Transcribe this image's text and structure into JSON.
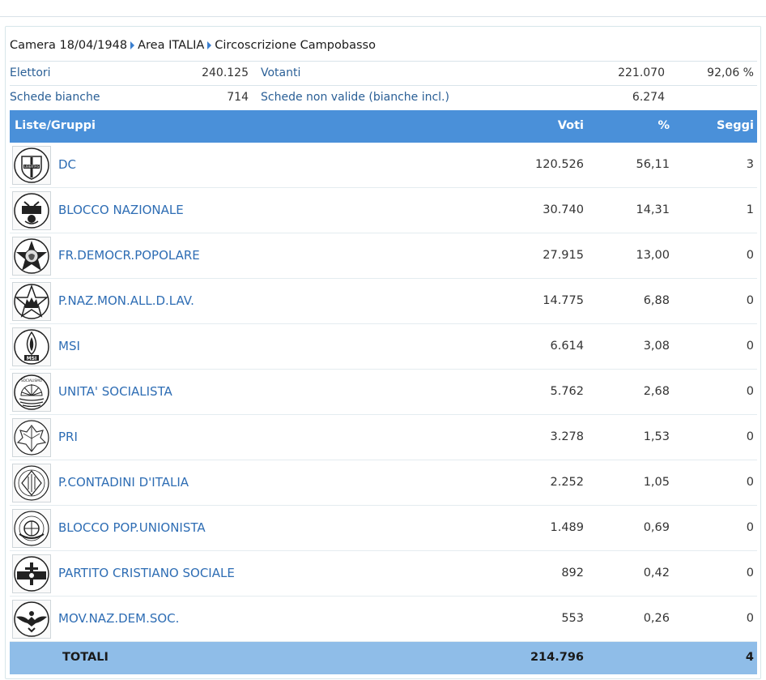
{
  "breadcrumb": [
    "Camera 18/04/1948",
    "Area ITALIA",
    "Circoscrizione Campobasso"
  ],
  "summary": {
    "elettori_label": "Elettori",
    "elettori_value": "240.125",
    "votanti_label": "Votanti",
    "votanti_value": "221.070",
    "votanti_pct": "92,06 %",
    "bianche_label": "Schede bianche",
    "bianche_value": "714",
    "nonvalide_label": "Schede non valide (bianche incl.)",
    "nonvalide_value": "6.274"
  },
  "table": {
    "headers": {
      "lists": "Liste/Gruppi",
      "votes": "Voti",
      "pct": "%",
      "seats": "Seggi"
    },
    "rows": [
      {
        "party": "DC",
        "votes": "120.526",
        "pct": "56,11",
        "seats": "3",
        "icon": "dc-shield-icon"
      },
      {
        "party": "BLOCCO NAZIONALE",
        "votes": "30.740",
        "pct": "14,31",
        "seats": "1",
        "icon": "blocco-nazionale-icon"
      },
      {
        "party": "FR.DEMOCR.POPOLARE",
        "votes": "27.915",
        "pct": "13,00",
        "seats": "0",
        "icon": "fronte-star-icon"
      },
      {
        "party": "P.NAZ.MON.ALL.D.LAV.",
        "votes": "14.775",
        "pct": "6,88",
        "seats": "0",
        "icon": "star-crown-icon"
      },
      {
        "party": "MSI",
        "votes": "6.614",
        "pct": "3,08",
        "seats": "0",
        "icon": "msi-flame-icon"
      },
      {
        "party": "UNITA' SOCIALISTA",
        "votes": "5.762",
        "pct": "2,68",
        "seats": "0",
        "icon": "sun-socialismo-icon"
      },
      {
        "party": "PRI",
        "votes": "3.278",
        "pct": "1,53",
        "seats": "0",
        "icon": "ivy-leaf-icon"
      },
      {
        "party": "P.CONTADINI D'ITALIA",
        "votes": "2.252",
        "pct": "1,05",
        "seats": "0",
        "icon": "contadini-icon"
      },
      {
        "party": "BLOCCO POP.UNIONISTA",
        "votes": "1.489",
        "pct": "0,69",
        "seats": "0",
        "icon": "unionista-icon"
      },
      {
        "party": "PARTITO CRISTIANO SOCIALE",
        "votes": "892",
        "pct": "0,42",
        "seats": "0",
        "icon": "cristiano-sociale-icon"
      },
      {
        "party": "MOV.NAZ.DEM.SOC.",
        "votes": "553",
        "pct": "0,26",
        "seats": "0",
        "icon": "eagle-icon"
      }
    ],
    "totals": {
      "label": "TOTALI",
      "votes": "214.796",
      "seats": "4"
    }
  },
  "logo_text": {
    "dc": "LIBERTAS",
    "psi": "SOCIALISMO",
    "msi": "MSI"
  },
  "colors": {
    "header": "#4a90d9",
    "totals": "#8fbde8",
    "link": "#2e6db4"
  }
}
